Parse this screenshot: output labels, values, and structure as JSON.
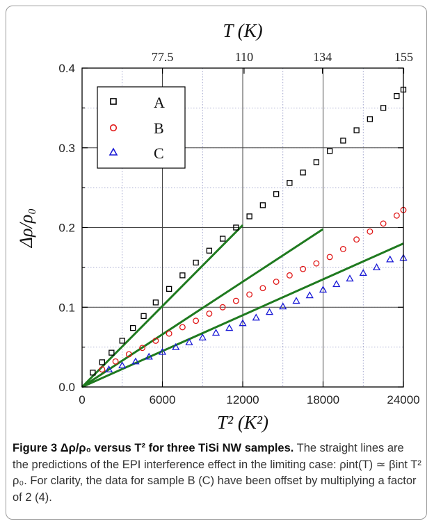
{
  "chart_data": {
    "type": "scatter",
    "title": "",
    "xlabel": "T² (K²)",
    "ylabel": "Δρ/ρ₀",
    "top_axis_label": "T (K)",
    "xlim": [
      0,
      24000
    ],
    "ylim": [
      0,
      0.4
    ],
    "x_ticks": [
      0,
      6000,
      12000,
      18000,
      24000
    ],
    "x_tick_labels": [
      "0",
      "6000",
      "12000",
      "18000",
      "24000"
    ],
    "y_ticks": [
      0.0,
      0.1,
      0.2,
      0.3,
      0.4
    ],
    "y_tick_labels": [
      "0.0",
      "0.1",
      "0.2",
      "0.3",
      "0.4"
    ],
    "top_ticks_T": [
      77.5,
      110,
      134,
      155
    ],
    "top_tick_labels": [
      "77.5",
      "110",
      "134",
      "155"
    ],
    "grid": true,
    "legend_position": "top-left",
    "series": [
      {
        "name": "A",
        "marker": "square",
        "color": "#000000",
        "x": [
          800,
          1500,
          2200,
          3000,
          3800,
          4600,
          5500,
          6500,
          7500,
          8500,
          9500,
          10500,
          11500,
          12500,
          13500,
          14500,
          15500,
          16500,
          17500,
          18500,
          19500,
          20500,
          21500,
          22500,
          23500,
          24000
        ],
        "y": [
          0.018,
          0.031,
          0.043,
          0.058,
          0.074,
          0.089,
          0.106,
          0.123,
          0.14,
          0.156,
          0.171,
          0.186,
          0.2,
          0.214,
          0.228,
          0.242,
          0.256,
          0.269,
          0.282,
          0.296,
          0.309,
          0.322,
          0.336,
          0.35,
          0.365,
          0.373
        ]
      },
      {
        "name": "B",
        "marker": "circle",
        "color": "#e01818",
        "x": [
          1500,
          2500,
          3500,
          4500,
          5500,
          6500,
          7500,
          8500,
          9500,
          10500,
          11500,
          12500,
          13500,
          14500,
          15500,
          16500,
          17500,
          18500,
          19500,
          20500,
          21500,
          22500,
          23500,
          24000
        ],
        "y": [
          0.022,
          0.032,
          0.041,
          0.049,
          0.058,
          0.067,
          0.075,
          0.083,
          0.092,
          0.1,
          0.108,
          0.116,
          0.124,
          0.132,
          0.14,
          0.148,
          0.155,
          0.163,
          0.173,
          0.185,
          0.195,
          0.205,
          0.215,
          0.222
        ]
      },
      {
        "name": "C",
        "marker": "triangle",
        "color": "#1a1ad6",
        "x": [
          2000,
          3000,
          4000,
          5000,
          6000,
          7000,
          8000,
          9000,
          10000,
          11000,
          12000,
          13000,
          14000,
          15000,
          16000,
          17000,
          18000,
          19000,
          20000,
          21000,
          22000,
          23000,
          24000
        ],
        "y": [
          0.022,
          0.027,
          0.032,
          0.038,
          0.044,
          0.05,
          0.056,
          0.062,
          0.068,
          0.074,
          0.08,
          0.087,
          0.094,
          0.101,
          0.108,
          0.115,
          0.122,
          0.129,
          0.136,
          0.143,
          0.15,
          0.16,
          0.162
        ]
      }
    ],
    "fit_lines": [
      {
        "color": "#1f7a1f",
        "x": [
          0,
          12000
        ],
        "y": [
          0,
          0.203
        ]
      },
      {
        "color": "#1f7a1f",
        "x": [
          0,
          18000
        ],
        "y": [
          0,
          0.198
        ]
      },
      {
        "color": "#1f7a1f",
        "x": [
          0,
          24000
        ],
        "y": [
          0,
          0.18
        ]
      }
    ]
  },
  "caption": {
    "lead": "Figure 3 Δρ/ρ₀ versus T² for three TiSi NW samples.",
    "body": " The straight lines are the predictions of the EPI interference effect in the limiting case: ρint(T) ≃ βint T² ρ₀. For clarity, the data for sample B (C) have been offset by multiplying a factor of 2 (4)."
  }
}
